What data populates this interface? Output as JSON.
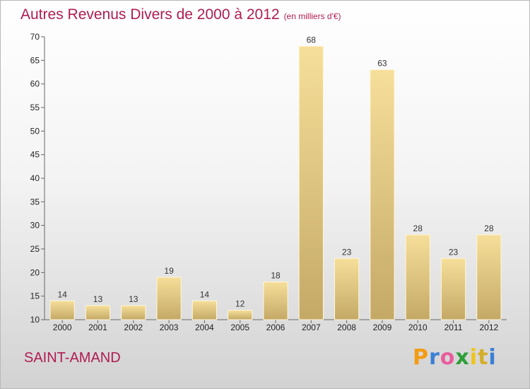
{
  "title": "Autres Revenus Divers de 2000 à 2012",
  "subtitle": "(en milliers d'€)",
  "commune": "SAINT-AMAND",
  "logo": {
    "letters": [
      "P",
      "r",
      "o",
      "x",
      "i",
      "t",
      "i"
    ],
    "colors": [
      "#f39c12",
      "#3a7fd5",
      "#e85d9c",
      "#2e9e3a",
      "#f0c419",
      "#d4ad2a",
      "#3a7fd5"
    ]
  },
  "colors": {
    "title": "#b01c52",
    "bar": "#e6cc85"
  },
  "chart_data": {
    "type": "bar",
    "categories": [
      "2000",
      "2001",
      "2002",
      "2003",
      "2004",
      "2005",
      "2006",
      "2007",
      "2008",
      "2009",
      "2010",
      "2011",
      "2012"
    ],
    "values": [
      14,
      13,
      13,
      19,
      14,
      12,
      18,
      68,
      23,
      63,
      28,
      23,
      28
    ],
    "ylim": [
      10,
      70
    ],
    "yticks": [
      10,
      15,
      20,
      25,
      30,
      35,
      40,
      45,
      50,
      55,
      60,
      65,
      70
    ],
    "grid": false,
    "data_labels": true
  }
}
